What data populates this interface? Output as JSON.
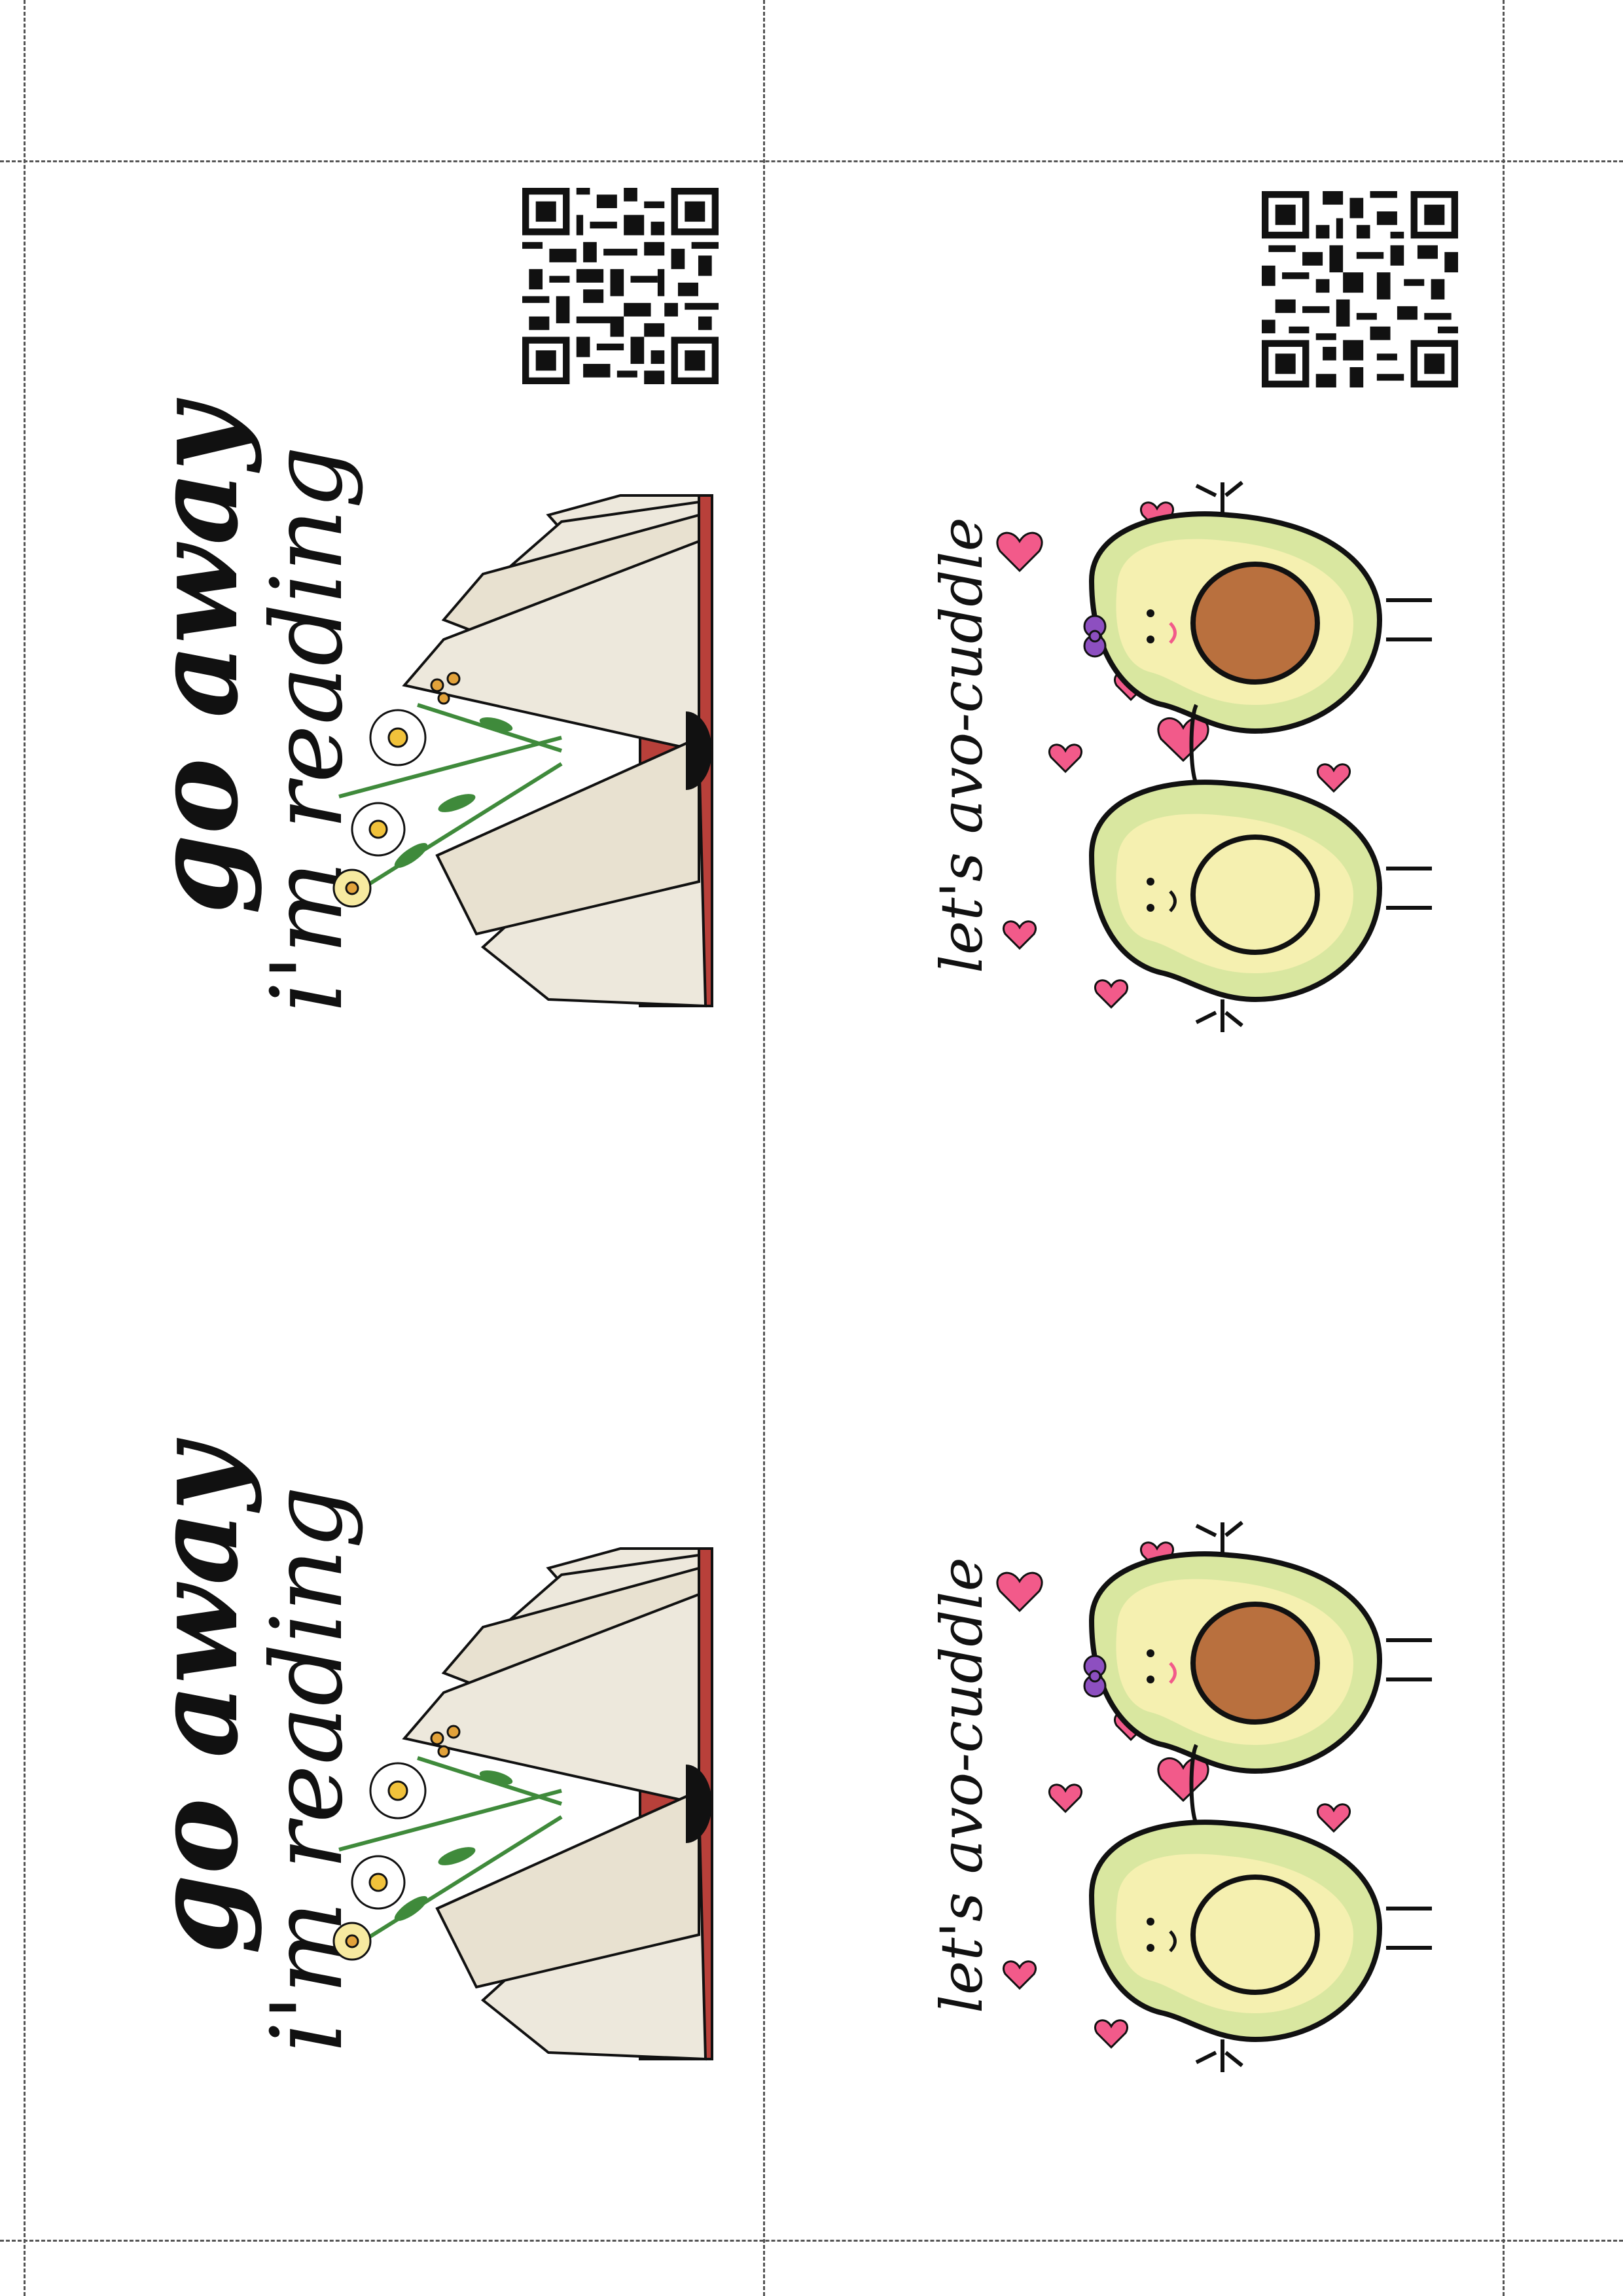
{
  "cards": [
    {
      "kind": "book",
      "line1": "go away",
      "line2": "i'm reading"
    },
    {
      "kind": "book",
      "line1": "go away",
      "line2": "i'm reading"
    },
    {
      "kind": "avocado",
      "text": "let's avo-cuddle"
    },
    {
      "kind": "avocado",
      "text": "let's avo-cuddle"
    }
  ],
  "icons": {
    "qr": "qr-code-icon",
    "book": "open-book-flowers-illustration",
    "avocado": "avocado-couple-illustration"
  },
  "colors": {
    "ink": "#111111",
    "cut_line": "#555555",
    "book_page": "#ede8dc",
    "book_cover": "#b8403a",
    "daisy": "#ffffff",
    "daisy_center": "#f1c23b",
    "leaf": "#3f8a3b",
    "avo_skin": "#d9e7a0",
    "avo_flesh": "#f5f0b0",
    "avo_pit": "#b9703e",
    "heart": "#f25a8a",
    "bow": "#8d4fc0"
  }
}
